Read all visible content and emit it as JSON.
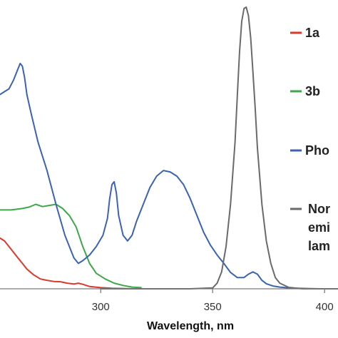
{
  "chart_data": {
    "type": "line",
    "xlabel": "Wavelength, nm",
    "ylabel": "",
    "xlim": [
      255,
      406
    ],
    "ylim": [
      0,
      1.0
    ],
    "x_ticks": [
      300,
      350,
      400
    ],
    "x_tick_labels": [
      "300",
      "350",
      "400"
    ],
    "grid": false,
    "legend_position": "right",
    "series": [
      {
        "name": "1a",
        "color": "#d93a2f",
        "x": [
          255,
          257,
          259,
          261,
          263,
          265,
          267,
          270,
          273,
          276,
          279,
          282,
          285,
          288,
          290,
          292,
          295,
          300,
          305,
          310,
          315,
          318
        ],
        "y": [
          0.18,
          0.17,
          0.15,
          0.13,
          0.11,
          0.09,
          0.07,
          0.05,
          0.035,
          0.03,
          0.026,
          0.025,
          0.02,
          0.017,
          0.02,
          0.016,
          0.008,
          0.004,
          0.002,
          0.001,
          0.0,
          0.0
        ]
      },
      {
        "name": "3b",
        "color": "#3fa64a",
        "x": [
          255,
          260,
          265,
          268,
          271,
          274,
          277,
          280,
          283,
          286,
          289,
          292,
          295,
          298,
          302,
          306,
          310,
          314,
          318
        ],
        "y": [
          0.28,
          0.28,
          0.285,
          0.29,
          0.3,
          0.292,
          0.296,
          0.3,
          0.285,
          0.26,
          0.22,
          0.15,
          0.09,
          0.055,
          0.035,
          0.02,
          0.012,
          0.006,
          0.004
        ]
      },
      {
        "name": "Pho",
        "color": "#3b63b0",
        "x": [
          255,
          257,
          259,
          261,
          263,
          264,
          265,
          266,
          267,
          269,
          272,
          276,
          280,
          284,
          288,
          290,
          292,
          295,
          298,
          301,
          303,
          304,
          305,
          306,
          307,
          308,
          310,
          312,
          314,
          316,
          319,
          322,
          325,
          328,
          331,
          334,
          337,
          340,
          343,
          346,
          349,
          352,
          355,
          358,
          361,
          364,
          366,
          368,
          370,
          372,
          374,
          377,
          380,
          384,
          388,
          392,
          398,
          406
        ],
        "y": [
          0.69,
          0.7,
          0.71,
          0.74,
          0.78,
          0.8,
          0.79,
          0.75,
          0.69,
          0.62,
          0.52,
          0.42,
          0.3,
          0.19,
          0.11,
          0.09,
          0.1,
          0.12,
          0.15,
          0.19,
          0.25,
          0.32,
          0.37,
          0.38,
          0.34,
          0.26,
          0.19,
          0.17,
          0.19,
          0.24,
          0.3,
          0.36,
          0.4,
          0.42,
          0.415,
          0.4,
          0.37,
          0.32,
          0.26,
          0.2,
          0.155,
          0.12,
          0.09,
          0.058,
          0.04,
          0.04,
          0.052,
          0.06,
          0.052,
          0.03,
          0.018,
          0.01,
          0.006,
          0.003,
          0.002,
          0.001,
          0.0,
          0.0
        ]
      },
      {
        "name": "Nor emi lam",
        "color": "#6a6a6a",
        "x": [
          300,
          340,
          350,
          352,
          354,
          356,
          358,
          360,
          361,
          362,
          363,
          364,
          365,
          366,
          367,
          368,
          369,
          370,
          372,
          374,
          376,
          378,
          380,
          384,
          390,
          406
        ],
        "y": [
          0.0,
          0.0,
          0.003,
          0.02,
          0.06,
          0.15,
          0.3,
          0.52,
          0.68,
          0.84,
          0.95,
          0.995,
          1.0,
          0.97,
          0.89,
          0.77,
          0.64,
          0.5,
          0.3,
          0.17,
          0.09,
          0.04,
          0.02,
          0.005,
          0.0,
          0.0
        ]
      }
    ],
    "legend": [
      {
        "label": "1a",
        "color": "#d93a2f"
      },
      {
        "label": "3b",
        "color": "#3fa64a"
      },
      {
        "label": "Pho",
        "color": "#3b63b0"
      },
      {
        "label": "Nor",
        "color": "#6a6a6a"
      },
      {
        "label": "emi",
        "color": ""
      },
      {
        "label": "lam",
        "color": ""
      }
    ]
  }
}
